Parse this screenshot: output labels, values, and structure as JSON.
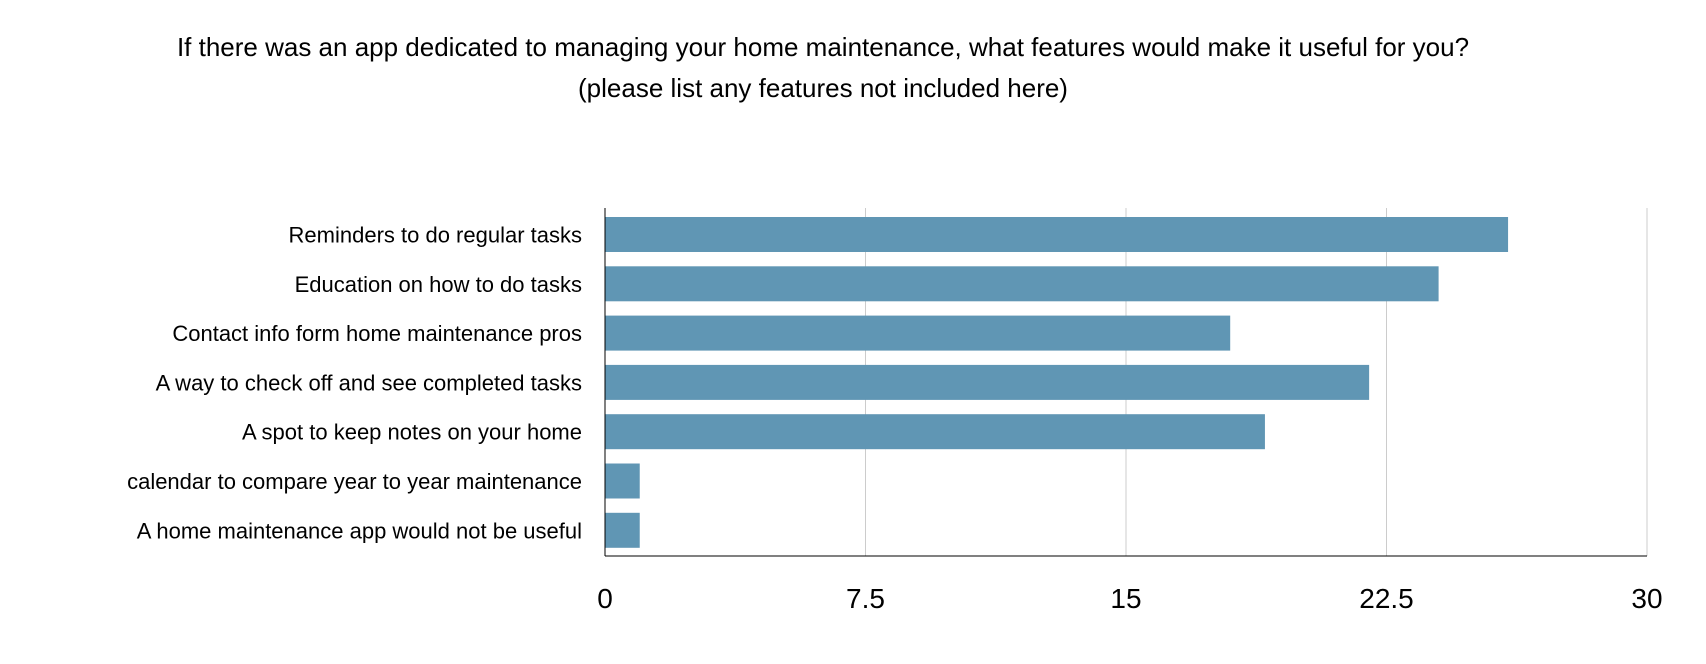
{
  "chart_data": {
    "type": "bar",
    "orientation": "horizontal",
    "title": "If there was an app dedicated to managing your home maintenance, what features would make it useful for you?",
    "subtitle": "(please list any features not included here)",
    "categories": [
      "Reminders to do regular tasks",
      "Education on how to do tasks",
      "Contact info form home maintenance pros",
      "A way to check off and see completed tasks",
      "A spot to keep notes on your home",
      "calendar to compare year to year maintenance",
      "A home maintenance app would not be useful"
    ],
    "values": [
      26,
      24,
      18,
      22,
      19,
      1,
      1
    ],
    "xlim": [
      0,
      30
    ],
    "ticks": [
      0,
      7.5,
      15,
      22.5,
      30
    ],
    "tick_labels": [
      "0",
      "7.5",
      "15",
      "22.5",
      "30"
    ],
    "grid": "vertical",
    "legend": "none",
    "bar_color": "#6096b4",
    "grid_color": "#cccccc",
    "axis_color": "#000000"
  }
}
